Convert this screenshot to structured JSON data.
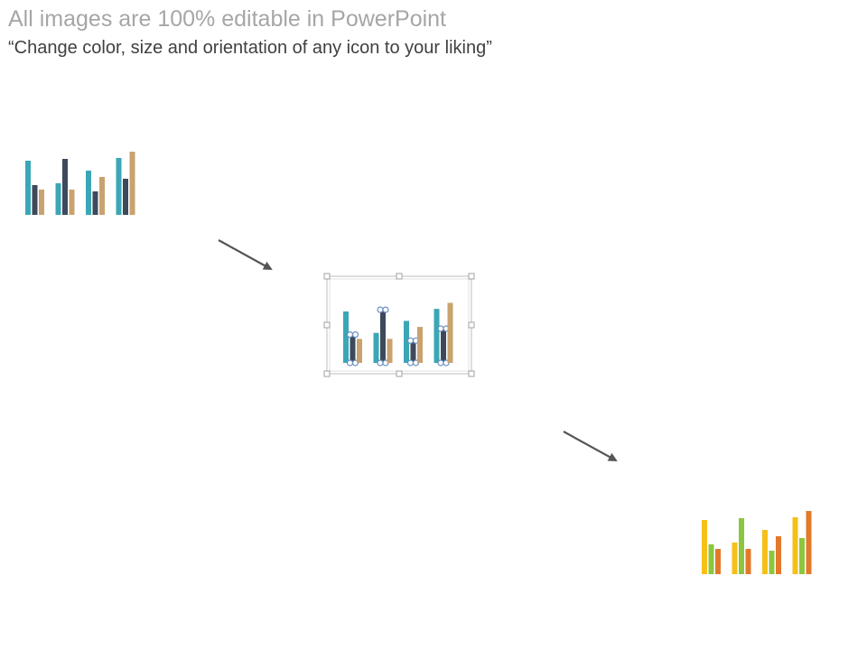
{
  "header": {
    "title": "All images are 100% editable in PowerPoint",
    "subtitle": "“Change color, size and orientation of any icon to your liking”"
  },
  "icons": [
    {
      "name": "bar-chart-icon-original",
      "colors": [
        "#3aa7b6",
        "#3d4a5c",
        "#c9a26e"
      ],
      "selected": false,
      "values": [
        [
          60,
          33,
          28
        ],
        [
          35,
          62,
          28
        ],
        [
          49,
          26,
          42
        ],
        [
          63,
          40,
          70
        ]
      ]
    },
    {
      "name": "bar-chart-icon-selected",
      "colors": [
        "#3aa7b6",
        "#3d4a5c",
        "#c9a26e"
      ],
      "selected": true,
      "values": [
        [
          60,
          33,
          28
        ],
        [
          35,
          62,
          28
        ],
        [
          49,
          26,
          42
        ],
        [
          63,
          40,
          70
        ]
      ]
    },
    {
      "name": "bar-chart-icon-recolored",
      "colors": [
        "#f5c018",
        "#8cc63f",
        "#e3792b"
      ],
      "selected": false,
      "values": [
        [
          60,
          33,
          28
        ],
        [
          35,
          62,
          28
        ],
        [
          49,
          26,
          42
        ],
        [
          63,
          40,
          70
        ]
      ]
    }
  ],
  "arrows": [
    {
      "name": "arrow-down-right-1"
    },
    {
      "name": "arrow-down-right-2"
    }
  ]
}
